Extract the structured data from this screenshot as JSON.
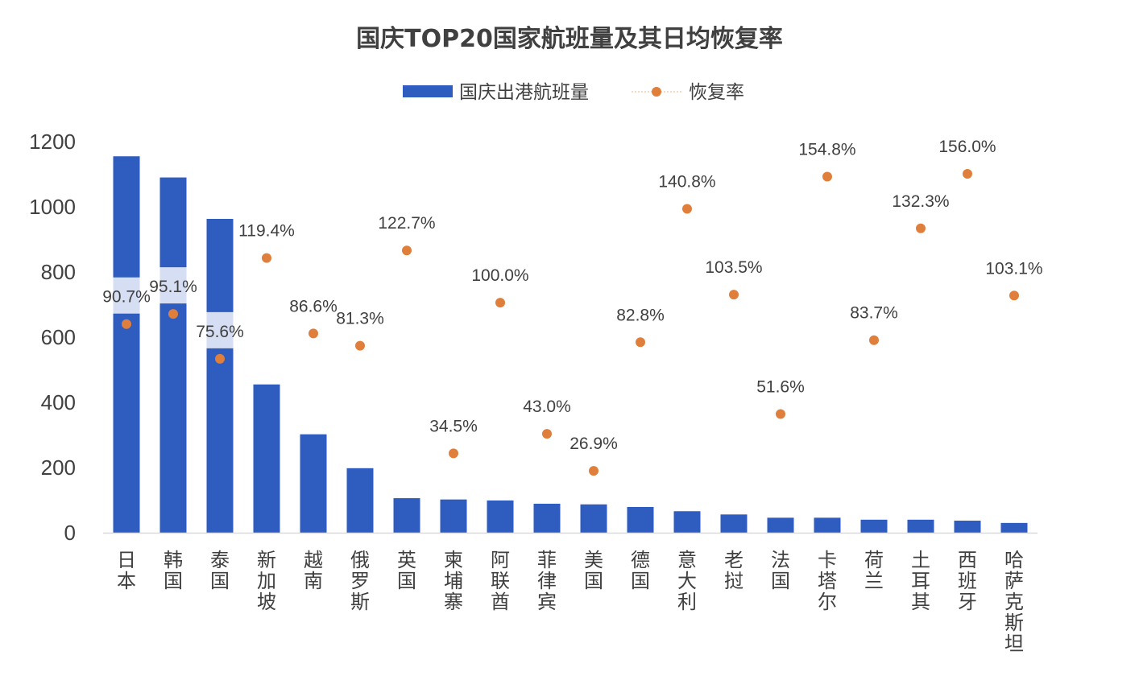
{
  "chart_data": {
    "type": "bar",
    "title": "国庆TOP20国家航班量及其日均恢复率",
    "categories": [
      "日本",
      "韩国",
      "泰国",
      "新加坡",
      "越南",
      "俄罗斯",
      "英国",
      "柬埔寨",
      "阿联酋",
      "菲律宾",
      "美国",
      "德国",
      "意大利",
      "老挝",
      "法国",
      "卡塔尔",
      "荷兰",
      "土耳其",
      "西班牙",
      "哈萨克斯坦"
    ],
    "series": [
      {
        "name": "国庆出港航班量",
        "type": "bar",
        "color": "#2E5DBF",
        "values": [
          1155,
          1090,
          963,
          455,
          302,
          198,
          106,
          102,
          99,
          89,
          87,
          79,
          66,
          56,
          46,
          46,
          40,
          40,
          37,
          30
        ]
      },
      {
        "name": "恢复率",
        "type": "scatter",
        "color": "#E07F3C",
        "values": [
          90.7,
          95.1,
          75.6,
          119.4,
          86.6,
          81.3,
          122.7,
          34.5,
          100.0,
          43.0,
          26.9,
          82.8,
          140.8,
          103.5,
          51.6,
          154.8,
          83.7,
          132.3,
          156.0,
          103.1
        ],
        "labels": [
          "90.7%",
          "95.1%",
          "75.6%",
          "119.4%",
          "86.6%",
          "81.3%",
          "122.7%",
          "34.5%",
          "100.0%",
          "43.0%",
          "26.9%",
          "82.8%",
          "140.8%",
          "103.5%",
          "51.6%",
          "154.8%",
          "83.7%",
          "132.3%",
          "156.0%",
          "103.1%"
        ]
      }
    ],
    "y_axis": {
      "min": 0,
      "max": 1200,
      "ticks": [
        "0",
        "200",
        "400",
        "600",
        "800",
        "1000",
        "1200"
      ]
    },
    "secondary_y_axis": {
      "min": 0,
      "max": 170,
      "shown": false
    },
    "legend_position": "top-center",
    "grid": false
  }
}
